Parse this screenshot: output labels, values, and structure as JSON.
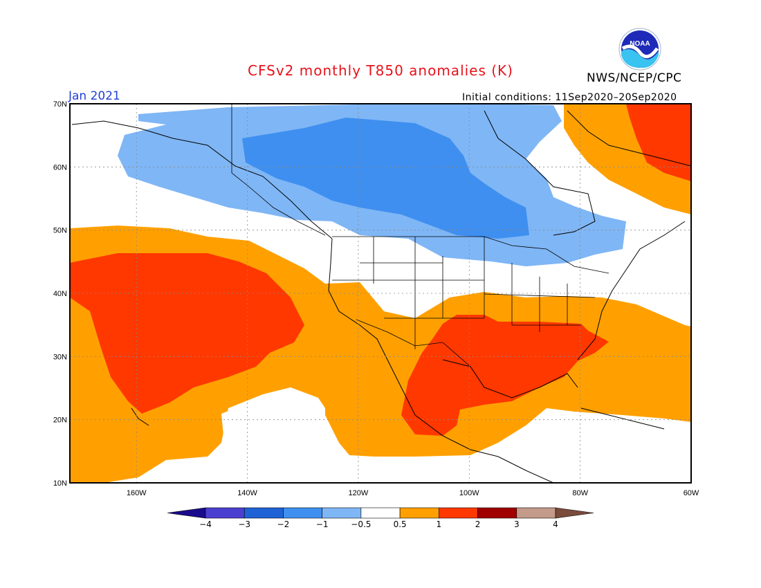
{
  "title": "CFSv2 monthly T850 anomalies (K)",
  "organization": "NWS/NCEP/CPC",
  "valid_month": "Jan 2021",
  "initial_conditions": "Initial conditions: 11Sep2020–20Sep2020",
  "logo": {
    "text": "NOAA",
    "icon": "noaa-logo-icon"
  },
  "map": {
    "lon_range": [
      -172,
      -60
    ],
    "lat_range": [
      10,
      70
    ],
    "lat_labels": [
      "10N",
      "20N",
      "30N",
      "40N",
      "50N",
      "60N",
      "70N"
    ],
    "lon_labels": [
      "160W",
      "140W",
      "120W",
      "100W",
      "80W",
      "60W"
    ],
    "grid": "dotted"
  },
  "colorbar": {
    "labels": [
      "−4",
      "−3",
      "−2",
      "−1",
      "−0.5",
      "0.5",
      "1",
      "2",
      "3",
      "4"
    ],
    "colors": [
      "#1a0a8c",
      "#4b3fd0",
      "#1f62d6",
      "#3f8ff0",
      "#7fb6f5",
      "#ffffff",
      "#ffa000",
      "#ff3800",
      "#a00000",
      "#c49a8a",
      "#7a4a3c"
    ]
  },
  "anomaly_colors": {
    "warm1": "#ffa000",
    "warm2": "#ff3800",
    "cool1": "#7fb6f5",
    "cool2": "#3f8ff0"
  }
}
